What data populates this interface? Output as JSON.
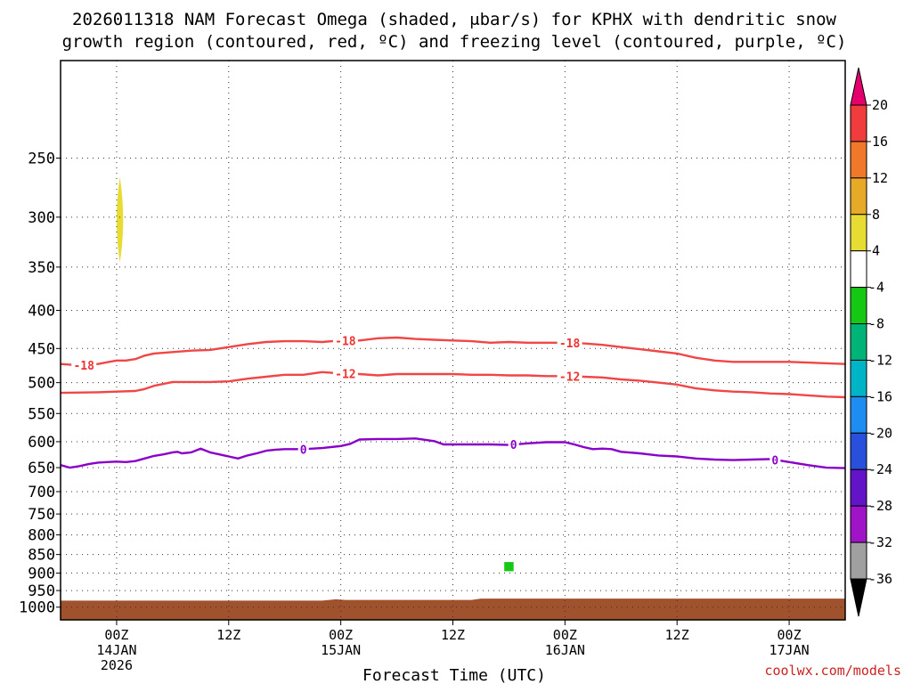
{
  "chart_data": {
    "type": "time-height",
    "title_lines": [
      "2026011318 NAM Forecast Omega (shaded, μbar/s) for KPHX with dendritic snow",
      "growth region (contoured, red, ºC) and freezing level (contoured, purple, ºC)"
    ],
    "xlabel": "Forecast Time (UTC)",
    "credit": "coolwx.com/models",
    "xlim_hours": [
      -6,
      78
    ],
    "ylim_hPa": [
      1040,
      185
    ],
    "y_ticks": [
      250,
      300,
      350,
      400,
      450,
      500,
      550,
      600,
      650,
      700,
      750,
      800,
      850,
      900,
      950,
      1000
    ],
    "x_ticks": [
      {
        "hour": 0,
        "lines": [
          "00Z",
          "14JAN",
          "2026"
        ]
      },
      {
        "hour": 12,
        "lines": [
          "12Z"
        ]
      },
      {
        "hour": 24,
        "lines": [
          "00Z",
          "15JAN"
        ]
      },
      {
        "hour": 36,
        "lines": [
          "12Z"
        ]
      },
      {
        "hour": 48,
        "lines": [
          "00Z",
          "16JAN"
        ]
      },
      {
        "hour": 60,
        "lines": [
          "12Z"
        ]
      },
      {
        "hour": 72,
        "lines": [
          "00Z",
          "17JAN"
        ]
      }
    ],
    "colorbar": {
      "labels": [
        "20",
        "16",
        "12",
        "8",
        "4",
        "-4",
        "-8",
        "-12",
        "-16",
        "-20",
        "-24",
        "-28",
        "-32",
        "-36"
      ],
      "segments": [
        {
          "from": 16,
          "to": 20,
          "color": "#f03c3c"
        },
        {
          "from": 12,
          "to": 16,
          "color": "#f0782a"
        },
        {
          "from": 8,
          "to": 12,
          "color": "#e6aa28"
        },
        {
          "from": 4,
          "to": 8,
          "color": "#e6dc32"
        },
        {
          "from": -4,
          "to": 4,
          "color": "#ffffff"
        },
        {
          "from": -8,
          "to": -4,
          "color": "#14c814"
        },
        {
          "from": -12,
          "to": -8,
          "color": "#00b478"
        },
        {
          "from": -16,
          "to": -12,
          "color": "#00b4c8"
        },
        {
          "from": -20,
          "to": -16,
          "color": "#1e8cf0"
        },
        {
          "from": -24,
          "to": -20,
          "color": "#2850dc"
        },
        {
          "from": -28,
          "to": -24,
          "color": "#6414c8"
        },
        {
          "from": -32,
          "to": -28,
          "color": "#a014c8"
        },
        {
          "from": -36,
          "to": -32,
          "color": "#a0a0a0"
        }
      ],
      "top_arrow_color": "#e6006e",
      "bottom_arrow_color": "#000000"
    },
    "series": [
      {
        "name": "-18 C isotherm",
        "color": "#f04646",
        "label": "-18",
        "label_hours": [
          -3.5,
          24.5,
          48.5
        ],
        "points": [
          [
            -6,
            472
          ],
          [
            -4,
            474
          ],
          [
            -2,
            472
          ],
          [
            0,
            467
          ],
          [
            1,
            467
          ],
          [
            2,
            465
          ],
          [
            3,
            460
          ],
          [
            4,
            457
          ],
          [
            6,
            455
          ],
          [
            8,
            453
          ],
          [
            10,
            452
          ],
          [
            12,
            448
          ],
          [
            14,
            444
          ],
          [
            16,
            441
          ],
          [
            18,
            440
          ],
          [
            20,
            440
          ],
          [
            22,
            441
          ],
          [
            24,
            439
          ],
          [
            26,
            439
          ],
          [
            28,
            436
          ],
          [
            30,
            435
          ],
          [
            32,
            437
          ],
          [
            34,
            438
          ],
          [
            36,
            439
          ],
          [
            38,
            440
          ],
          [
            40,
            442
          ],
          [
            42,
            441
          ],
          [
            44,
            442
          ],
          [
            46,
            442
          ],
          [
            48,
            442
          ],
          [
            50,
            443
          ],
          [
            52,
            445
          ],
          [
            54,
            448
          ],
          [
            56,
            451
          ],
          [
            58,
            454
          ],
          [
            60,
            457
          ],
          [
            62,
            463
          ],
          [
            64,
            467
          ],
          [
            66,
            469
          ],
          [
            68,
            469
          ],
          [
            70,
            469
          ],
          [
            72,
            469
          ],
          [
            74,
            470
          ],
          [
            76,
            471
          ],
          [
            78,
            472
          ]
        ]
      },
      {
        "name": "-12 C isotherm",
        "color": "#f04646",
        "label": "-12",
        "label_hours": [
          24.5,
          48.5
        ],
        "points": [
          [
            -6,
            516
          ],
          [
            -2,
            515
          ],
          [
            0,
            514
          ],
          [
            2,
            513
          ],
          [
            3,
            510
          ],
          [
            4,
            505
          ],
          [
            6,
            499
          ],
          [
            8,
            499
          ],
          [
            10,
            499
          ],
          [
            12,
            498
          ],
          [
            14,
            494
          ],
          [
            16,
            491
          ],
          [
            18,
            488
          ],
          [
            20,
            488
          ],
          [
            22,
            484
          ],
          [
            24,
            486
          ],
          [
            26,
            487
          ],
          [
            28,
            489
          ],
          [
            30,
            487
          ],
          [
            32,
            487
          ],
          [
            34,
            487
          ],
          [
            36,
            487
          ],
          [
            38,
            488
          ],
          [
            40,
            488
          ],
          [
            42,
            489
          ],
          [
            44,
            489
          ],
          [
            46,
            490
          ],
          [
            48,
            490
          ],
          [
            50,
            491
          ],
          [
            52,
            492
          ],
          [
            54,
            495
          ],
          [
            56,
            497
          ],
          [
            58,
            500
          ],
          [
            60,
            503
          ],
          [
            62,
            509
          ],
          [
            64,
            512
          ],
          [
            66,
            514
          ],
          [
            68,
            515
          ],
          [
            70,
            517
          ],
          [
            72,
            518
          ],
          [
            74,
            520
          ],
          [
            76,
            522
          ],
          [
            78,
            523
          ]
        ]
      },
      {
        "name": "0 C freezing level",
        "color": "#8a00c8",
        "label": "0",
        "label_hours": [
          20,
          42.5,
          70.5
        ],
        "points": [
          [
            -6,
            645
          ],
          [
            -5,
            650
          ],
          [
            -4,
            647
          ],
          [
            -3,
            643
          ],
          [
            -2,
            640
          ],
          [
            -1,
            639
          ],
          [
            0,
            638
          ],
          [
            1,
            639
          ],
          [
            2,
            637
          ],
          [
            3,
            632
          ],
          [
            4,
            627
          ],
          [
            5,
            624
          ],
          [
            6,
            620
          ],
          [
            6.5,
            619
          ],
          [
            7,
            622
          ],
          [
            8,
            620
          ],
          [
            9,
            613
          ],
          [
            10,
            620
          ],
          [
            11,
            624
          ],
          [
            12,
            628
          ],
          [
            13,
            632
          ],
          [
            14,
            626
          ],
          [
            15,
            622
          ],
          [
            16,
            617
          ],
          [
            17,
            615
          ],
          [
            18,
            614
          ],
          [
            20,
            614
          ],
          [
            22,
            612
          ],
          [
            24,
            608
          ],
          [
            25,
            604
          ],
          [
            26,
            596
          ],
          [
            28,
            595
          ],
          [
            30,
            595
          ],
          [
            32,
            594
          ],
          [
            34,
            599
          ],
          [
            35,
            605
          ],
          [
            36,
            605
          ],
          [
            38,
            605
          ],
          [
            40,
            605
          ],
          [
            42,
            606
          ],
          [
            44,
            603
          ],
          [
            46,
            601
          ],
          [
            48,
            601
          ],
          [
            49,
            605
          ],
          [
            50,
            610
          ],
          [
            51,
            614
          ],
          [
            52,
            613
          ],
          [
            53,
            614
          ],
          [
            54,
            619
          ],
          [
            56,
            622
          ],
          [
            58,
            626
          ],
          [
            60,
            628
          ],
          [
            62,
            632
          ],
          [
            64,
            634
          ],
          [
            66,
            635
          ],
          [
            68,
            634
          ],
          [
            70,
            633
          ],
          [
            72,
            639
          ],
          [
            74,
            645
          ],
          [
            76,
            650
          ],
          [
            78,
            651
          ]
        ]
      }
    ],
    "shaded_regions": [
      {
        "omega": 6,
        "type": "lens",
        "center_hour": 0.35,
        "top_hPa": 265,
        "bottom_hPa": 345,
        "half_width_hours": 0.35
      },
      {
        "omega": -6,
        "type": "box",
        "hour_range": [
          41.5,
          42.5
        ],
        "hPa_range": [
          870,
          895
        ]
      }
    ],
    "terrain": {
      "color": "#a0522d",
      "points": [
        [
          -6,
          980
        ],
        [
          22,
          980
        ],
        [
          23.5,
          976
        ],
        [
          24.5,
          978
        ],
        [
          38,
          978
        ],
        [
          39,
          974
        ],
        [
          78,
          974
        ]
      ]
    }
  }
}
